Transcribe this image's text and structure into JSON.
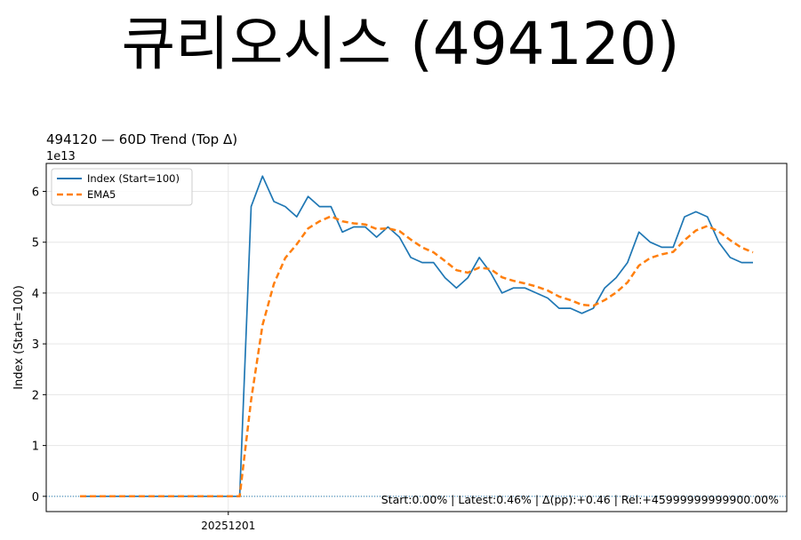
{
  "page_title": "큐리오시스 (494120)",
  "chart_data": {
    "type": "line",
    "title": "494120 — 60D Trend (Top Δ)",
    "ylabel": "Index (Start=100)",
    "xlabel": "",
    "y_offset_label": "1e13",
    "yticks": [
      0,
      1,
      2,
      3,
      4,
      5,
      6
    ],
    "ylim": [
      -0.3,
      6.55
    ],
    "xticks": [
      {
        "index": 13,
        "label": "20251201"
      }
    ],
    "grid": true,
    "legend_position": "upper left",
    "series": [
      {
        "name": "Index (Start=100)",
        "color": "#1f77b4",
        "style": "solid",
        "values": [
          0,
          0,
          0,
          0,
          0,
          0,
          0,
          0,
          0,
          0,
          0,
          0,
          0,
          0,
          0,
          5.7,
          6.3,
          5.8,
          5.7,
          5.5,
          5.9,
          5.7,
          5.7,
          5.2,
          5.3,
          5.3,
          5.1,
          5.3,
          5.1,
          4.7,
          4.6,
          4.6,
          4.3,
          4.1,
          4.3,
          4.7,
          4.4,
          4.0,
          4.1,
          4.1,
          4.0,
          3.9,
          3.7,
          3.7,
          3.6,
          3.7,
          4.1,
          4.3,
          4.6,
          5.2,
          5.0,
          4.9,
          4.9,
          5.5,
          5.6,
          5.5,
          5.0,
          4.7,
          4.6,
          4.6
        ]
      },
      {
        "name": "EMA5",
        "color": "#ff7f0e",
        "style": "dashed",
        "values": [
          0,
          0,
          0,
          0,
          0,
          0,
          0,
          0,
          0,
          0,
          0,
          0,
          0,
          0,
          0,
          1.9,
          3.37,
          4.18,
          4.69,
          4.96,
          5.27,
          5.41,
          5.51,
          5.41,
          5.37,
          5.35,
          5.26,
          5.27,
          5.22,
          5.05,
          4.9,
          4.8,
          4.63,
          4.45,
          4.4,
          4.5,
          4.47,
          4.31,
          4.24,
          4.19,
          4.13,
          4.05,
          3.93,
          3.86,
          3.77,
          3.75,
          3.86,
          4.01,
          4.21,
          4.54,
          4.69,
          4.76,
          4.81,
          5.04,
          5.23,
          5.32,
          5.21,
          5.04,
          4.89,
          4.8
        ]
      }
    ],
    "hline": {
      "y": 0,
      "color": "#1f77b4",
      "style": "dotted"
    },
    "vline": {
      "index": 13
    },
    "annotation": "Start:0.00% | Latest:0.46% | Δ(pp):+0.46 | Rel:+45999999999900.00%"
  }
}
